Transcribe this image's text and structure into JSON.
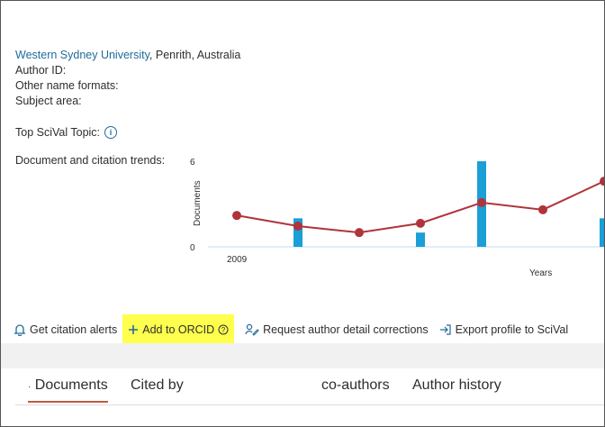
{
  "author_info": {
    "affiliation_link": "Western Sydney University",
    "affiliation_rest": ", Penrith, Australia",
    "author_id_label": "Author ID:",
    "other_names_label": "Other name formats:",
    "subject_area_label": "Subject area:"
  },
  "top_topic": {
    "label": "Top SciVal Topic:",
    "icon": "info-icon"
  },
  "trends_label": "Document and citation trends:",
  "chart_data": {
    "type": "bar+line",
    "ylabel": "Documents",
    "xlabel": "Years",
    "y_ticks": [
      "6",
      "0"
    ],
    "x_tick_label": "2009",
    "ylim": [
      0,
      6
    ],
    "bars": [
      {
        "x": 2011,
        "value": 2
      },
      {
        "x": 2015,
        "value": 1
      },
      {
        "x": 2017,
        "value": 6
      },
      {
        "x": 2021,
        "value": 2
      }
    ],
    "line": [
      {
        "x": 2009,
        "value": 2.2
      },
      {
        "x": 2011,
        "value": 1.45
      },
      {
        "x": 2013,
        "value": 1.0
      },
      {
        "x": 2015,
        "value": 1.65
      },
      {
        "x": 2017,
        "value": 3.1
      },
      {
        "x": 2019,
        "value": 2.6
      },
      {
        "x": 2021,
        "value": 4.6
      }
    ],
    "colors": {
      "bar": "#1a9fd6",
      "line": "#b0343a",
      "axis": "#c9d8ef"
    }
  },
  "actions": [
    {
      "label": "Get citation alerts",
      "icon": "bell-icon"
    },
    {
      "label": "Add to ORCID",
      "icon": "plus-icon",
      "highlighted": true
    },
    {
      "label": "Request author detail corrections",
      "icon": "person-edit-icon"
    },
    {
      "label": "Export profile to SciVal",
      "icon": "export-icon"
    }
  ],
  "tabs": [
    {
      "label": "Documents",
      "active": true
    },
    {
      "label": "Cited by"
    },
    {
      "label": "co-authors"
    },
    {
      "label": "Author history"
    }
  ]
}
